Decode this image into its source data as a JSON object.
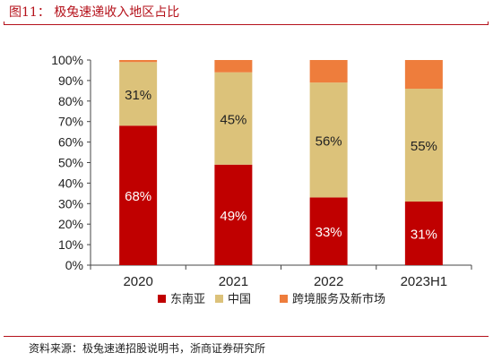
{
  "figure": {
    "title": "图11：  极兔速递收入地区占比",
    "source": "资料来源：极兔速递招股说明书，浙商证券研究所"
  },
  "colors": {
    "accent": "#b5121b",
    "southeast_asia": "#c00000",
    "china": "#dcc27a",
    "cross_border": "#ee7d3c"
  },
  "chart_data": {
    "type": "bar",
    "stacked": true,
    "categories": [
      "2020",
      "2021",
      "2022",
      "2023H1"
    ],
    "ylim": [
      0,
      100
    ],
    "yticks": [
      "0%",
      "10%",
      "20%",
      "30%",
      "40%",
      "50%",
      "60%",
      "70%",
      "80%",
      "90%",
      "100%"
    ],
    "legend_position": "bottom",
    "series": [
      {
        "name": "东南亚",
        "values": [
          68,
          49,
          33,
          31
        ],
        "labels": [
          "68%",
          "49%",
          "33%",
          "31%"
        ],
        "label_color": "#ffffff"
      },
      {
        "name": "中国",
        "values": [
          31,
          45,
          56,
          55
        ],
        "labels": [
          "31%",
          "45%",
          "56%",
          "55%"
        ],
        "label_color": "#222222"
      },
      {
        "name": "跨境服务及新市场",
        "values": [
          1,
          6,
          11,
          14
        ],
        "labels": [
          "",
          "",
          "",
          ""
        ],
        "label_color": "#222222"
      }
    ]
  }
}
